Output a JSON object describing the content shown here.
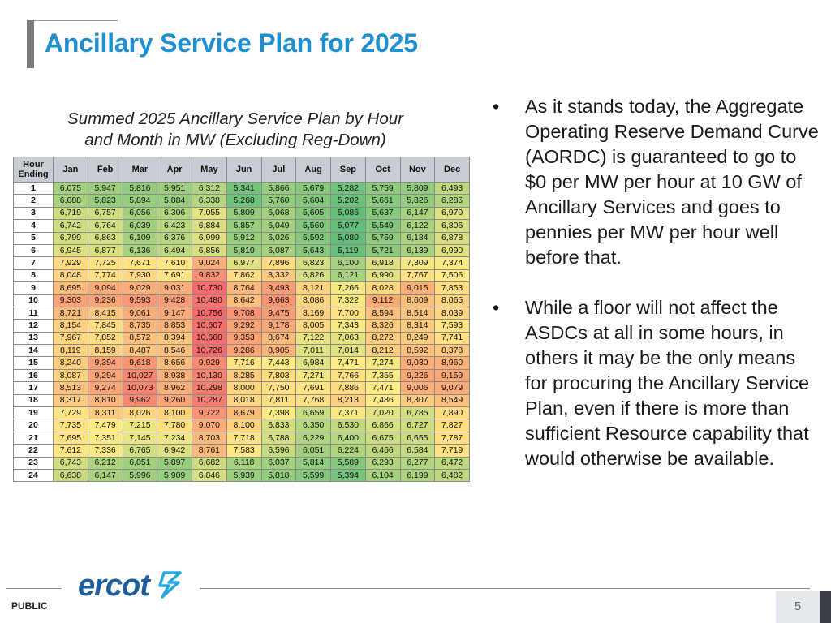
{
  "slide": {
    "title": "Ancillary Service Plan for 2025",
    "page_number": "5",
    "classification": "PUBLIC",
    "logo_text": "ercot"
  },
  "table": {
    "caption_line1": "Summed 2025 Ancillary Service Plan by Hour",
    "caption_line2": "and Month in MW (Excluding Reg-Down)",
    "header_hour_line1": "Hour",
    "header_hour_line2": "Ending",
    "months": [
      "Jan",
      "Feb",
      "Mar",
      "Apr",
      "May",
      "Jun",
      "Jul",
      "Aug",
      "Sep",
      "Oct",
      "Nov",
      "Dec"
    ],
    "rows": [
      {
        "hour": "1",
        "values": [
          "6,075",
          "5,947",
          "5,816",
          "5,951",
          "6,312",
          "5,341",
          "5,866",
          "5,679",
          "5,282",
          "5,759",
          "5,809",
          "6,493"
        ]
      },
      {
        "hour": "2",
        "values": [
          "6,088",
          "5,823",
          "5,894",
          "5,884",
          "6,338",
          "5,268",
          "5,760",
          "5,604",
          "5,202",
          "5,661",
          "5,826",
          "6,285"
        ]
      },
      {
        "hour": "3",
        "values": [
          "6,719",
          "6,757",
          "6,056",
          "6,306",
          "7,055",
          "5,809",
          "6,068",
          "5,605",
          "5,086",
          "5,637",
          "6,147",
          "6,970"
        ]
      },
      {
        "hour": "4",
        "values": [
          "6,742",
          "6,764",
          "6,039",
          "6,423",
          "6,884",
          "5,857",
          "6,049",
          "5,560",
          "5,077",
          "5,549",
          "6,122",
          "6,806"
        ]
      },
      {
        "hour": "5",
        "values": [
          "6,799",
          "6,863",
          "6,109",
          "6,376",
          "6,999",
          "5,912",
          "6,026",
          "5,592",
          "5,080",
          "5,759",
          "6,184",
          "6,878"
        ]
      },
      {
        "hour": "6",
        "values": [
          "6,945",
          "6,877",
          "6,136",
          "6,494",
          "6,856",
          "5,810",
          "6,087",
          "5,643",
          "5,119",
          "5,721",
          "6,139",
          "6,990"
        ]
      },
      {
        "hour": "7",
        "values": [
          "7,929",
          "7,725",
          "7,671",
          "7,610",
          "9,024",
          "6,977",
          "7,896",
          "6,823",
          "6,100",
          "6,918",
          "7,309",
          "7,374"
        ]
      },
      {
        "hour": "8",
        "values": [
          "8,048",
          "7,774",
          "7,930",
          "7,691",
          "9,832",
          "7,862",
          "8,332",
          "6,826",
          "6,121",
          "6,990",
          "7,767",
          "7,506"
        ]
      },
      {
        "hour": "9",
        "values": [
          "8,695",
          "9,094",
          "9,029",
          "9,031",
          "10,730",
          "8,764",
          "9,493",
          "8,121",
          "7,266",
          "8,028",
          "9,015",
          "7,853"
        ]
      },
      {
        "hour": "10",
        "values": [
          "9,303",
          "9,236",
          "9,593",
          "9,428",
          "10,480",
          "8,642",
          "9,663",
          "8,086",
          "7,322",
          "9,112",
          "8,609",
          "8,065"
        ]
      },
      {
        "hour": "11",
        "values": [
          "8,721",
          "8,415",
          "9,061",
          "9,147",
          "10,756",
          "9,708",
          "9,475",
          "8,169",
          "7,700",
          "8,594",
          "8,514",
          "8,039"
        ]
      },
      {
        "hour": "12",
        "values": [
          "8,154",
          "7,845",
          "8,735",
          "8,853",
          "10,607",
          "9,292",
          "9,178",
          "8,005",
          "7,343",
          "8,326",
          "8,314",
          "7,593"
        ]
      },
      {
        "hour": "13",
        "values": [
          "7,967",
          "7,852",
          "8,572",
          "8,394",
          "10,660",
          "9,353",
          "8,674",
          "7,122",
          "7,063",
          "8,272",
          "8,249",
          "7,741"
        ]
      },
      {
        "hour": "14",
        "values": [
          "8,119",
          "8,159",
          "8,487",
          "8,546",
          "10,726",
          "9,286",
          "8,905",
          "7,011",
          "7,014",
          "8,212",
          "8,592",
          "8,378"
        ]
      },
      {
        "hour": "15",
        "values": [
          "8,240",
          "9,394",
          "9,618",
          "8,656",
          "9,929",
          "7,716",
          "7,443",
          "6,984",
          "7,471",
          "7,274",
          "9,030",
          "8,960"
        ]
      },
      {
        "hour": "16",
        "values": [
          "8,087",
          "9,294",
          "10,027",
          "8,938",
          "10,130",
          "8,285",
          "7,803",
          "7,271",
          "7,766",
          "7,355",
          "9,226",
          "9,159"
        ]
      },
      {
        "hour": "17",
        "values": [
          "8,513",
          "9,274",
          "10,073",
          "8,962",
          "10,298",
          "8,000",
          "7,750",
          "7,691",
          "7,886",
          "7,471",
          "9,006",
          "9,079"
        ]
      },
      {
        "hour": "18",
        "values": [
          "8,317",
          "8,810",
          "9,962",
          "9,260",
          "10,287",
          "8,018",
          "7,811",
          "7,768",
          "8,213",
          "7,486",
          "8,307",
          "8,549"
        ]
      },
      {
        "hour": "19",
        "values": [
          "7,729",
          "8,311",
          "8,026",
          "8,100",
          "9,722",
          "8,679",
          "7,398",
          "6,659",
          "7,371",
          "7,020",
          "6,785",
          "7,890"
        ]
      },
      {
        "hour": "20",
        "values": [
          "7,735",
          "7,479",
          "7,215",
          "7,780",
          "9,070",
          "8,100",
          "6,833",
          "6,350",
          "6,530",
          "6,866",
          "6,727",
          "7,827"
        ]
      },
      {
        "hour": "21",
        "values": [
          "7,695",
          "7,351",
          "7,145",
          "7,234",
          "8,703",
          "7,718",
          "6,788",
          "6,229",
          "6,400",
          "6,675",
          "6,655",
          "7,787"
        ]
      },
      {
        "hour": "22",
        "values": [
          "7,612",
          "7,336",
          "6,765",
          "6,942",
          "8,761",
          "7,583",
          "6,596",
          "6,051",
          "6,224",
          "6,466",
          "6,584",
          "7,719"
        ]
      },
      {
        "hour": "23",
        "values": [
          "6,743",
          "6,212",
          "6,051",
          "5,897",
          "6,682",
          "6,118",
          "6,037",
          "5,814",
          "5,589",
          "6,293",
          "6,277",
          "6,472"
        ]
      },
      {
        "hour": "24",
        "values": [
          "6,638",
          "6,147",
          "5,996",
          "5,909",
          "6,846",
          "5,939",
          "5,818",
          "5,599",
          "5,394",
          "6,104",
          "6,199",
          "6,482"
        ]
      }
    ]
  },
  "bullets": [
    "As it stands today, the Aggregate Operating Reserve Demand Curve (AORDC) is guaranteed to go to $0 per MW per hour at 10 GW of Ancillary Services and goes to pennies per MW per hour well before that.",
    "While a floor will not affect the ASDCs at all in some hours, in others it may be the only means for procuring the Ancillary Service Plan, even if there is more than sufficient Resource capability that would otherwise be available."
  ],
  "bullet_symbol": "•",
  "colors": {
    "title": "#1e8fd0",
    "heat_low": "#63be7b",
    "heat_mid": "#ffeb84",
    "heat_high": "#f8696b",
    "logo_blue": "#1f5f9e",
    "logo_light_blue": "#2aa7df"
  }
}
